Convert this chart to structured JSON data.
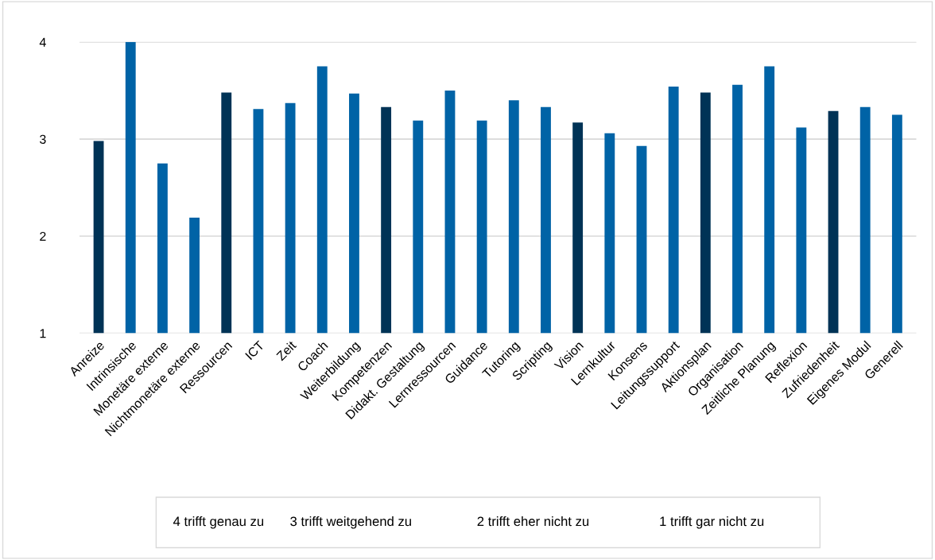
{
  "chart_data": {
    "type": "bar",
    "categories": [
      "Anreize",
      "Intrinsische",
      "Monetäre externe",
      "Nichtmonetäre externe",
      "Ressourcen",
      "ICT",
      "Zeit",
      "Coach",
      "Weiterbildung",
      "Kompetenzen",
      "Didakt. Gestaltung",
      "Lernressourcen",
      "Guidance",
      "Tutoring",
      "Scripting",
      "Vision",
      "Lernkultur",
      "Konsens",
      "Leitungssupport",
      "Aktionsplan",
      "Organisation",
      "Zeitliche Planung",
      "Reflexion",
      "Zufriedenheit",
      "Eigenes Modul",
      "Generell"
    ],
    "values": [
      2.98,
      4.0,
      2.75,
      2.19,
      3.48,
      3.31,
      3.37,
      3.75,
      3.47,
      3.33,
      3.19,
      3.5,
      3.19,
      3.4,
      3.33,
      3.17,
      3.06,
      2.93,
      3.54,
      3.48,
      3.56,
      3.75,
      3.12,
      3.29,
      3.33,
      3.25
    ],
    "colors": [
      "#003356",
      "#0063a6",
      "#0063a6",
      "#0063a6",
      "#003356",
      "#0063a6",
      "#0063a6",
      "#0063a6",
      "#0063a6",
      "#003356",
      "#0063a6",
      "#0063a6",
      "#0063a6",
      "#0063a6",
      "#0063a6",
      "#003356",
      "#0063a6",
      "#0063a6",
      "#0063a6",
      "#003356",
      "#0063a6",
      "#0063a6",
      "#0063a6",
      "#003356",
      "#0063a6",
      "#0063a6"
    ],
    "ylim": [
      1,
      4
    ],
    "yticks": [
      1,
      2,
      3,
      4
    ],
    "grid": "y",
    "annotations": [
      "4 trifft genau zu",
      "3 trifft weitgehend zu",
      "2 trifft eher nicht zu",
      "1 trifft gar nicht zu"
    ]
  }
}
